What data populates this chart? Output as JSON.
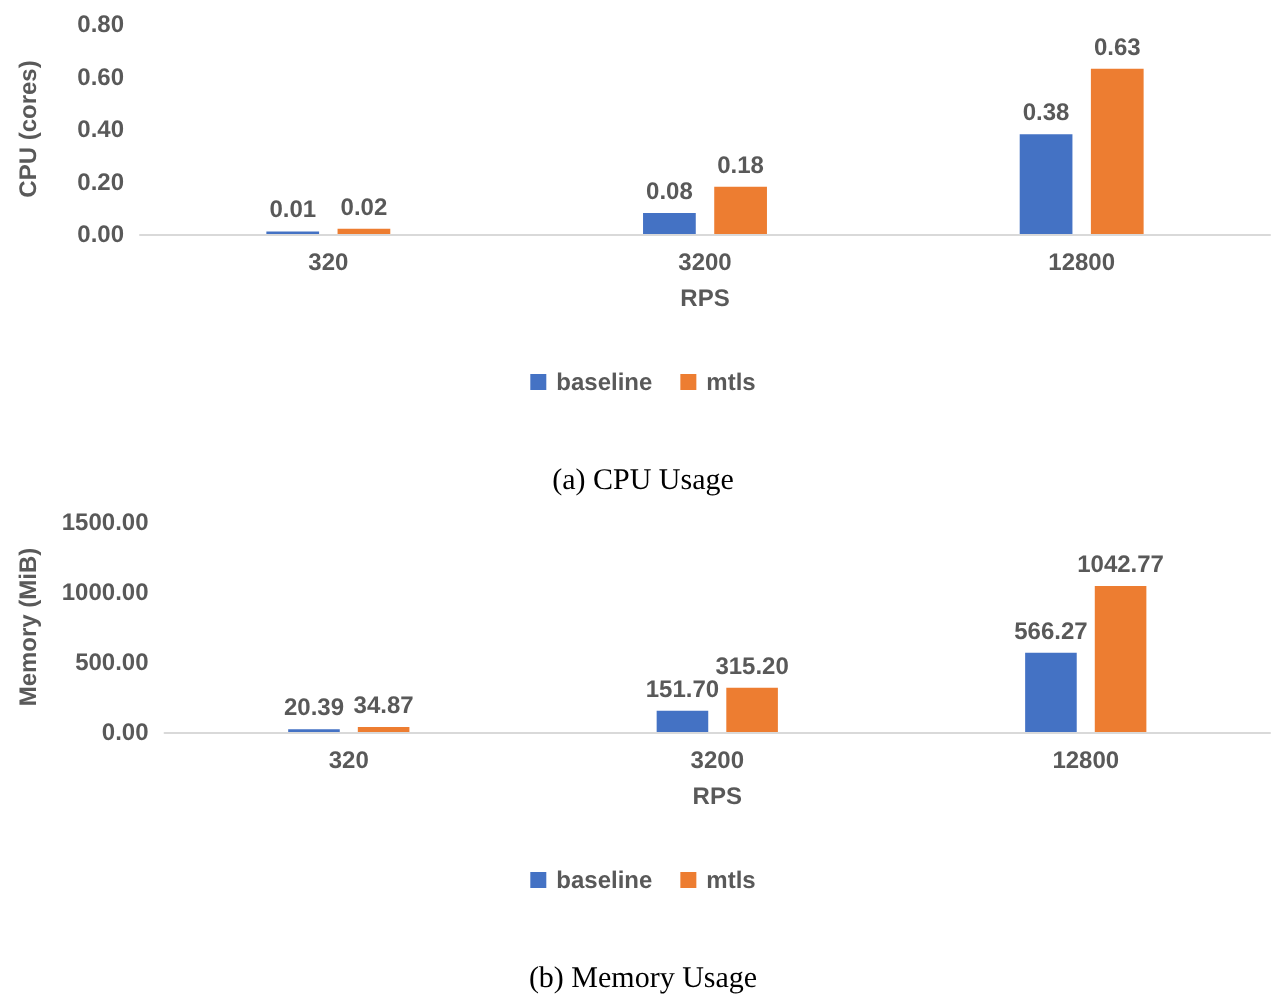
{
  "chart_data": [
    {
      "type": "bar",
      "title": "(a) CPU Usage",
      "xlabel": "RPS",
      "ylabel": "CPU (cores)",
      "categories": [
        "320",
        "3200",
        "12800"
      ],
      "series": [
        {
          "name": "baseline",
          "color": "#4472c4",
          "values": [
            0.01,
            0.08,
            0.38
          ],
          "value_labels": [
            "0.01",
            "0.08",
            "0.38"
          ]
        },
        {
          "name": "mtls",
          "color": "#ed7d31",
          "values": [
            0.02,
            0.18,
            0.63
          ],
          "value_labels": [
            "0.02",
            "0.18",
            "0.63"
          ]
        }
      ],
      "ylim": [
        0,
        0.8
      ],
      "yticks": [
        {
          "value": 0,
          "label": "0.00"
        },
        {
          "value": 0.2,
          "label": "0.20"
        },
        {
          "value": 0.4,
          "label": "0.40"
        },
        {
          "value": 0.6,
          "label": "0.60"
        },
        {
          "value": 0.8,
          "label": "0.80"
        }
      ],
      "grid": false,
      "legend": "bottom"
    },
    {
      "type": "bar",
      "title": "(b) Memory Usage",
      "xlabel": "RPS",
      "ylabel": "Memory (MiB)",
      "categories": [
        "320",
        "3200",
        "12800"
      ],
      "series": [
        {
          "name": "baseline",
          "color": "#4472c4",
          "values": [
            20.39,
            151.7,
            566.27
          ],
          "value_labels": [
            "20.39",
            "151.70",
            "566.27"
          ]
        },
        {
          "name": "mtls",
          "color": "#ed7d31",
          "values": [
            34.87,
            315.2,
            1042.77
          ],
          "value_labels": [
            "34.87",
            "315.20",
            "1042.77"
          ]
        }
      ],
      "ylim": [
        0,
        1500
      ],
      "yticks": [
        {
          "value": 0,
          "label": "0.00"
        },
        {
          "value": 500,
          "label": "500.00"
        },
        {
          "value": 1000,
          "label": "1000.00"
        },
        {
          "value": 1500,
          "label": "1500.00"
        }
      ],
      "grid": false,
      "legend": "bottom"
    }
  ]
}
